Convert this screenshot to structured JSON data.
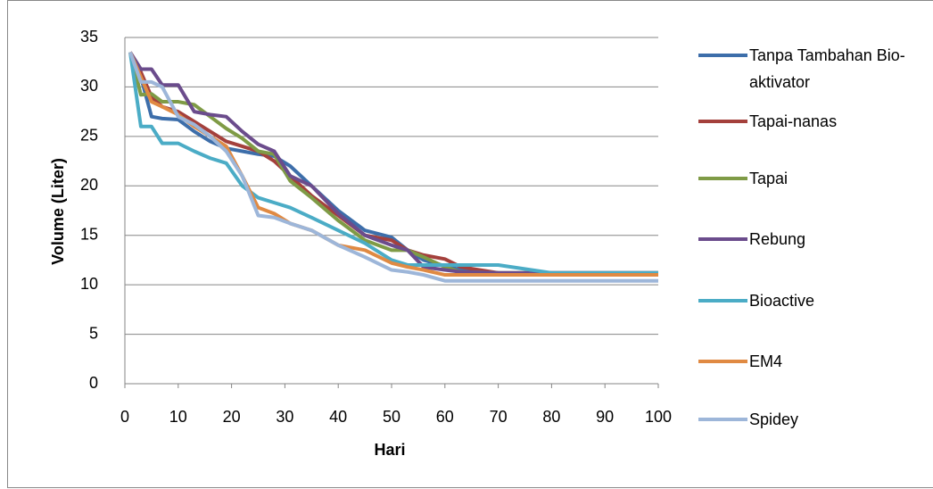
{
  "chart_data": {
    "type": "line",
    "x_label": "Hari",
    "y_label": "Volume (Liter)",
    "x": [
      1,
      3,
      5,
      7,
      10,
      13,
      16,
      19,
      22,
      25,
      28,
      31,
      35,
      40,
      45,
      50,
      53,
      56,
      60,
      63,
      70,
      80,
      90,
      100
    ],
    "series": [
      {
        "name": "Tanpa Tambahan Bio-aktivator",
        "color": "#3d6eaa",
        "values": [
          33.5,
          31,
          27,
          26.8,
          26.7,
          25.5,
          24.5,
          23.8,
          23.5,
          23.2,
          23,
          22,
          20,
          17.5,
          15.5,
          14.8,
          13.5,
          12.5,
          11.9,
          11.5,
          11.2,
          11.2,
          11.2,
          11.2
        ]
      },
      {
        "name": "Tapai-nanas",
        "color": "#a4403c",
        "values": [
          33.5,
          31.5,
          29,
          28,
          27.5,
          26.5,
          25.5,
          24.5,
          24,
          23.5,
          22.5,
          21,
          19,
          17,
          15,
          14.5,
          13.5,
          13,
          12.6,
          11.8,
          11.2,
          11.2,
          11.2,
          11.2
        ]
      },
      {
        "name": "Tapai",
        "color": "#7f9b46",
        "values": [
          33.5,
          29.2,
          29.3,
          28.5,
          28.5,
          28.2,
          27,
          25.8,
          24.8,
          23.5,
          23.2,
          20.5,
          18.8,
          16.5,
          14.5,
          13.5,
          13.5,
          12.8,
          11.8,
          11.3,
          11.2,
          11.2,
          11.2,
          11.2
        ]
      },
      {
        "name": "Rebung",
        "color": "#6b4c8c",
        "values": [
          33.5,
          31.8,
          31.8,
          30.2,
          30.2,
          27.5,
          27.2,
          27,
          25.5,
          24.2,
          23.5,
          21,
          20,
          17.2,
          15,
          14,
          13.5,
          11.8,
          11.5,
          11.3,
          11.2,
          11.2,
          11.2,
          11.2
        ]
      },
      {
        "name": "Bioactive",
        "color": "#4bacc6",
        "values": [
          33.5,
          26,
          26,
          24.3,
          24.3,
          23.5,
          22.8,
          22.3,
          20,
          18.8,
          18.3,
          17.8,
          16.8,
          15.5,
          14.2,
          12.5,
          12,
          12,
          12,
          12,
          12,
          11.2,
          11.2,
          11.2
        ]
      },
      {
        "name": "EM4",
        "color": "#e08a43",
        "values": [
          33.5,
          31,
          28.5,
          28,
          27.2,
          26,
          25,
          24,
          21,
          17.8,
          17.2,
          16.2,
          15.5,
          14,
          13.5,
          12.2,
          11.8,
          11.5,
          11,
          11,
          11,
          11,
          11,
          11
        ]
      },
      {
        "name": "Spidey",
        "color": "#9db6d9",
        "values": [
          33.5,
          30.5,
          30.5,
          30,
          27,
          26.2,
          25,
          23.5,
          21,
          17,
          16.8,
          16.2,
          15.5,
          14,
          12.8,
          11.5,
          11.3,
          11,
          10.4,
          10.4,
          10.4,
          10.4,
          10.4,
          10.4
        ]
      }
    ],
    "xlim": [
      0,
      100
    ],
    "xticks": [
      0,
      10,
      20,
      30,
      40,
      50,
      60,
      70,
      80,
      90,
      100
    ],
    "ylim": [
      0,
      35
    ],
    "yticks": [
      0,
      5,
      10,
      15,
      20,
      25,
      30,
      35
    ],
    "grid": true,
    "legend": "right"
  }
}
